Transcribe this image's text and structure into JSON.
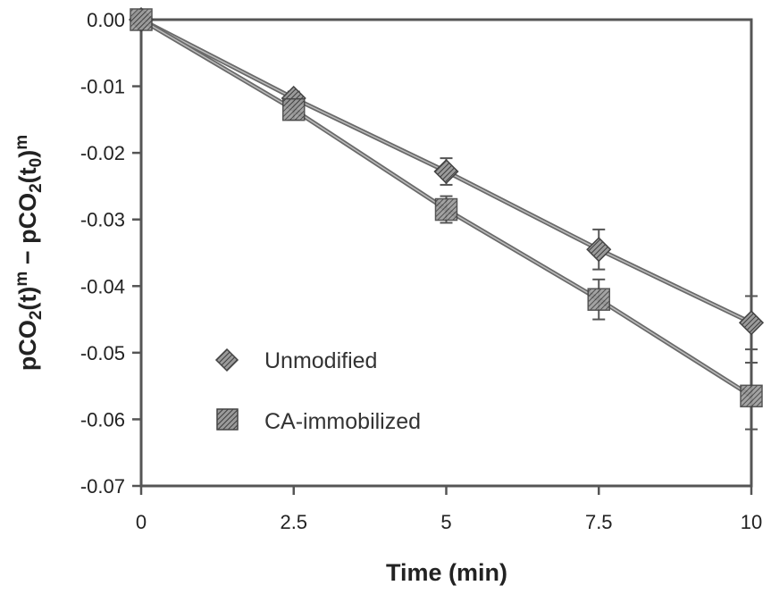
{
  "chart_data": {
    "type": "line",
    "title": "",
    "xlabel": "Time (min)",
    "ylabel_parts": {
      "a": "pCO",
      "a_sub": "2",
      "b": "(t)",
      "b_sup": "m",
      "c": " − pCO",
      "c_sub": "2",
      "d": "(t",
      "d_sub": "0",
      "e": ")",
      "e_sup": "m"
    },
    "x": [
      0,
      2.5,
      5,
      7.5,
      10
    ],
    "xlim": [
      0,
      10
    ],
    "ylim": [
      -0.07,
      0.0
    ],
    "x_ticks": [
      "0",
      "2.5",
      "5",
      "7.5",
      "10"
    ],
    "y_ticks": [
      "0.00",
      "-0.01",
      "-0.02",
      "-0.03",
      "-0.04",
      "-0.05",
      "-0.06",
      "-0.07"
    ],
    "grid": false,
    "legend_position": "lower-left inside",
    "series": [
      {
        "name": "Unmodified",
        "marker": "diamond",
        "values": [
          0.0,
          -0.0118,
          -0.0228,
          -0.0345,
          -0.0455
        ],
        "errors": [
          0.0,
          0.001,
          0.002,
          0.003,
          0.004
        ]
      },
      {
        "name": "CA-immobilized",
        "marker": "square",
        "values": [
          0.0,
          -0.0135,
          -0.0285,
          -0.042,
          -0.0565
        ],
        "errors": [
          0.0,
          0.0015,
          0.002,
          0.003,
          0.005
        ]
      }
    ],
    "colors": {
      "axis": "#555555",
      "line": "#555555",
      "marker_fill": "#777777",
      "text": "#222222"
    }
  }
}
